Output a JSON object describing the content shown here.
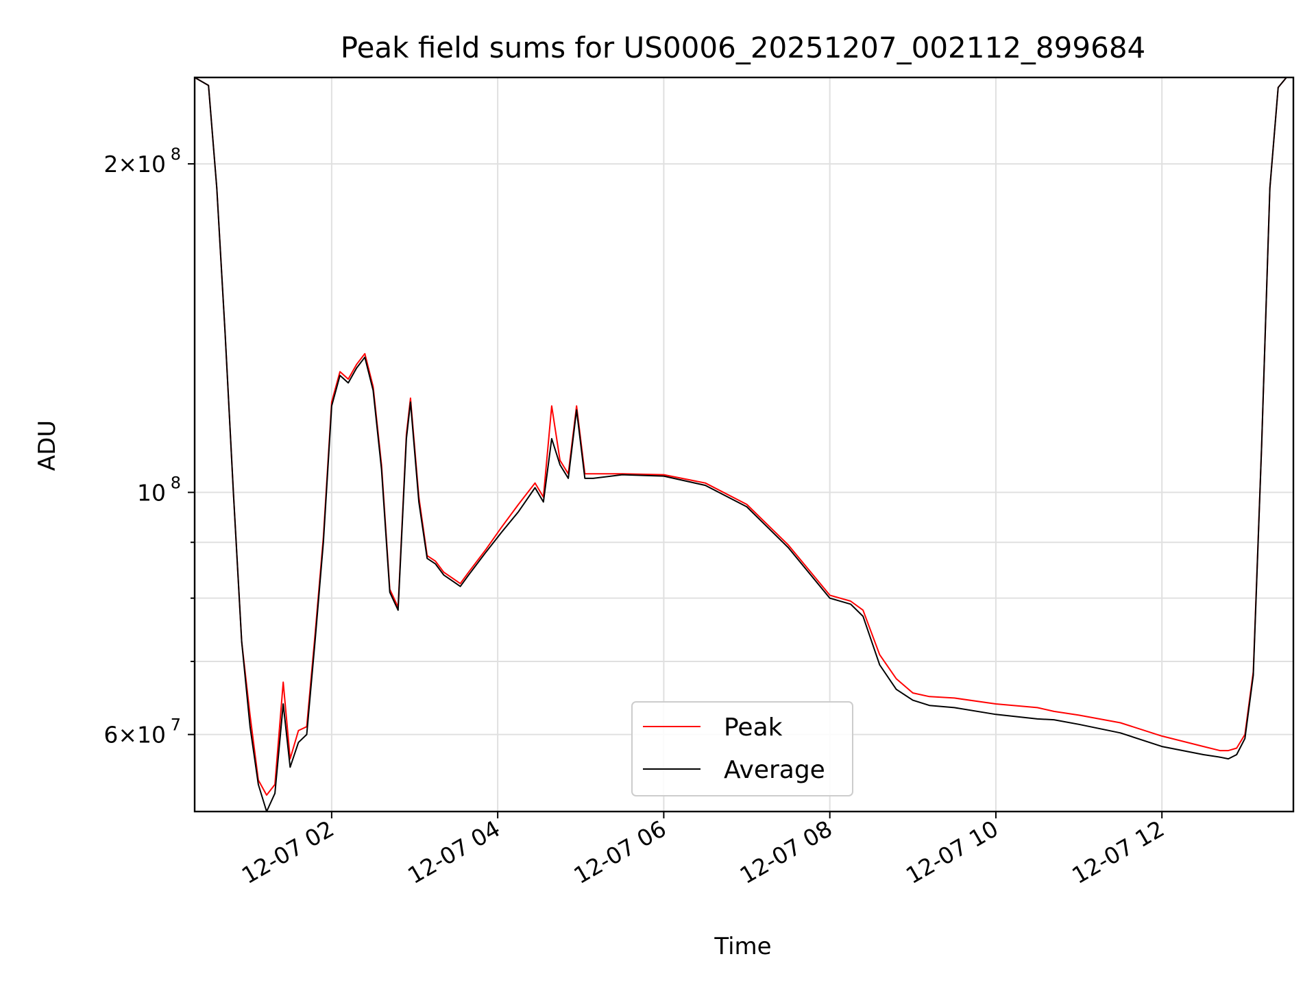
{
  "chart_data": {
    "type": "line",
    "title": "Peak field sums for US0006_20251207_002112_899684",
    "xlabel": "Time",
    "ylabel": "ADU",
    "y_scale": "log",
    "grid": true,
    "legend_position": "lower-center",
    "x_ticks": [
      "12-07 02",
      "12-07 04",
      "12-07 06",
      "12-07 08",
      "12-07 10",
      "12-07 12"
    ],
    "y_ticks": [
      {
        "value": 60000000,
        "label_mantissa": "6×10",
        "label_exp": "7"
      },
      {
        "value": 100000000,
        "label_mantissa": "10",
        "label_exp": "8"
      },
      {
        "value": 200000000,
        "label_mantissa": "2×10",
        "label_exp": "8"
      }
    ],
    "y_minor_ticks": [
      70000000,
      80000000,
      90000000
    ],
    "xlim": [
      "2025-12-07 00:21",
      "2025-12-07 13:35"
    ],
    "ylim": [
      51000000,
      240000000
    ],
    "series": [
      {
        "name": "Peak",
        "color": "#ff0000"
      },
      {
        "name": "Average",
        "color": "#000000"
      }
    ],
    "x": [
      "2025-12-07 00:21",
      "2025-12-07 00:31",
      "2025-12-07 00:37",
      "2025-12-07 00:43",
      "2025-12-07 00:49",
      "2025-12-07 00:55",
      "2025-12-07 01:01",
      "2025-12-07 01:07",
      "2025-12-07 01:13",
      "2025-12-07 01:19",
      "2025-12-07 01:25",
      "2025-12-07 01:30",
      "2025-12-07 01:36",
      "2025-12-07 01:42",
      "2025-12-07 01:48",
      "2025-12-07 01:54",
      "2025-12-07 02:00",
      "2025-12-07 02:06",
      "2025-12-07 02:12",
      "2025-12-07 02:18",
      "2025-12-07 02:24",
      "2025-12-07 02:30",
      "2025-12-07 02:36",
      "2025-12-07 02:42",
      "2025-12-07 02:48",
      "2025-12-07 02:54",
      "2025-12-07 02:57",
      "2025-12-07 03:03",
      "2025-12-07 03:09",
      "2025-12-07 03:15",
      "2025-12-07 03:21",
      "2025-12-07 03:27",
      "2025-12-07 03:33",
      "2025-12-07 03:39",
      "2025-12-07 03:51",
      "2025-12-07 04:03",
      "2025-12-07 04:15",
      "2025-12-07 04:27",
      "2025-12-07 04:33",
      "2025-12-07 04:39",
      "2025-12-07 04:45",
      "2025-12-07 04:51",
      "2025-12-07 04:57",
      "2025-12-07 05:03",
      "2025-12-07 05:09",
      "2025-12-07 05:30",
      "2025-12-07 06:00",
      "2025-12-07 06:30",
      "2025-12-07 07:00",
      "2025-12-07 07:30",
      "2025-12-07 08:00",
      "2025-12-07 08:15",
      "2025-12-07 08:24",
      "2025-12-07 08:36",
      "2025-12-07 08:48",
      "2025-12-07 09:00",
      "2025-12-07 09:12",
      "2025-12-07 09:30",
      "2025-12-07 10:00",
      "2025-12-07 10:30",
      "2025-12-07 10:42",
      "2025-12-07 11:00",
      "2025-12-07 11:30",
      "2025-12-07 12:00",
      "2025-12-07 12:30",
      "2025-12-07 12:42",
      "2025-12-07 12:48",
      "2025-12-07 12:54",
      "2025-12-07 13:00",
      "2025-12-07 13:06",
      "2025-12-07 13:12",
      "2025-12-07 13:18",
      "2025-12-07 13:24",
      "2025-12-07 13:30",
      "2025-12-07 13:35"
    ],
    "average": [
      240000000,
      236000000,
      190000000,
      140000000,
      100000000,
      73000000,
      61000000,
      54000000,
      51000000,
      53000000,
      64000000,
      56000000,
      59000000,
      60000000,
      73000000,
      90000000,
      120000000,
      128000000,
      126000000,
      130000000,
      133000000,
      124000000,
      105000000,
      81000000,
      78000000,
      112000000,
      121000000,
      98000000,
      87000000,
      86000000,
      84000000,
      83000000,
      82000000,
      84000000,
      88000000,
      92000000,
      96000000,
      101000000,
      98000000,
      112000000,
      106000000,
      103000000,
      119000000,
      103000000,
      103000000,
      103800000,
      103500000,
      101500000,
      97000000,
      89000000,
      80000000,
      79000000,
      77000000,
      69500000,
      66000000,
      64500000,
      63800000,
      63500000,
      62600000,
      62000000,
      61900000,
      61300000,
      60200000,
      58500000,
      57500000,
      57200000,
      57000000,
      57500000,
      59500000,
      68000000,
      110000000,
      190000000,
      235000000,
      240000000,
      240000000
    ],
    "peak": [
      240000000,
      236000000,
      190000000,
      140000000,
      100000000,
      73000000,
      62500000,
      54500000,
      52800000,
      54000000,
      67000000,
      57000000,
      60500000,
      61000000,
      74000000,
      91000000,
      121000000,
      129000000,
      127000000,
      131000000,
      134000000,
      125000000,
      106000000,
      81500000,
      78500000,
      113000000,
      122000000,
      99000000,
      87500000,
      86500000,
      84500000,
      83500000,
      82500000,
      84500000,
      88500000,
      93000000,
      97500000,
      102000000,
      99000000,
      120000000,
      107000000,
      104000000,
      120000000,
      104000000,
      104000000,
      104000000,
      103800000,
      102000000,
      97500000,
      89500000,
      80500000,
      79500000,
      78000000,
      71000000,
      67500000,
      65500000,
      65000000,
      64800000,
      64000000,
      63500000,
      63000000,
      62500000,
      61500000,
      59800000,
      58500000,
      58000000,
      58000000,
      58300000,
      60000000,
      68500000,
      110000000,
      190000000,
      235000000,
      240000000,
      240000000
    ]
  }
}
